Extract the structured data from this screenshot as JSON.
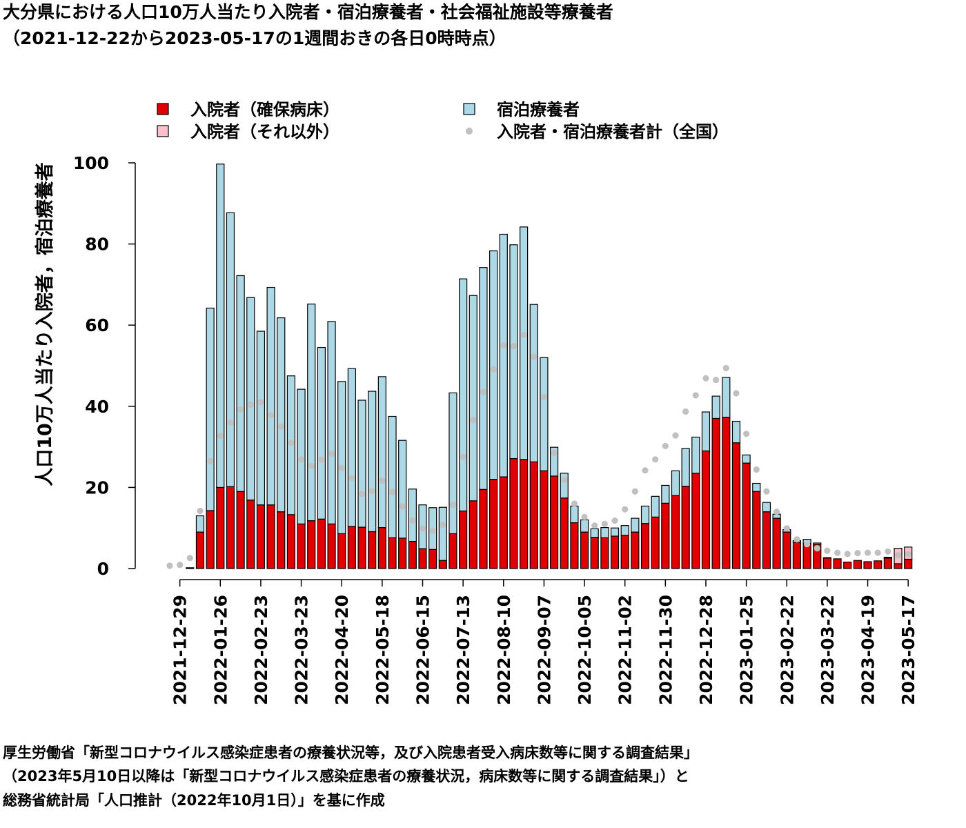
{
  "title": {
    "line1": "大分県における人口10万人当たり入院者・宿泊療養者・社会福祉施設等療養者",
    "line2": "（2021-12-22から2023-05-17の1週間おきの各日0時時点）"
  },
  "source": {
    "line1": "厚生労働省「新型コロナウイルス感染症患者の療養状況等，及び入院患者受入病床数等に関する調査結果」",
    "line2": "（2023年5月10日以降は「新型コロナウイルス感染症患者の療養状況，病床数等に関する調査結果」）と",
    "line3": "総務省統計局「人口推計（2022年10月1日）」を基に作成"
  },
  "chart_data": {
    "type": "bar",
    "stacked": true,
    "ylabel": "人口10万人当たり入院者，宿泊療養者",
    "ylim": [
      0,
      100
    ],
    "yticks": [
      0,
      20,
      40,
      60,
      80,
      100
    ],
    "legend_placement": "top",
    "colors": {
      "hospital_secured": "#e00000",
      "hospital_other": "#ffc0cb",
      "hotel": "#add8e6",
      "national": "#c0c0c0"
    },
    "xtick_labels": [
      "2021-12-29",
      "2022-01-26",
      "2022-02-23",
      "2022-03-23",
      "2022-04-20",
      "2022-05-18",
      "2022-06-15",
      "2022-07-13",
      "2022-08-10",
      "2022-09-07",
      "2022-10-05",
      "2022-11-02",
      "2022-11-30",
      "2022-12-28",
      "2023-01-25",
      "2023-02-22",
      "2023-03-22",
      "2023-04-19",
      "2023-05-17"
    ],
    "xtick_indices": [
      1,
      5,
      9,
      13,
      17,
      21,
      25,
      29,
      33,
      37,
      41,
      45,
      49,
      53,
      57,
      61,
      65,
      69,
      73
    ],
    "series": [
      {
        "name": "入院者（確保病床）",
        "key": "hospital_secured",
        "values": [
          0,
          0,
          0.2,
          9,
          14.3,
          20,
          20.2,
          19,
          16.9,
          15.7,
          15.7,
          14,
          13.3,
          11,
          11.8,
          12.2,
          11,
          8.6,
          10.4,
          10.2,
          9.1,
          10.1,
          7.6,
          7.5,
          6.7,
          4.9,
          4.7,
          2,
          8.6,
          14.2,
          16.7,
          19.5,
          22,
          22.6,
          27.1,
          26.9,
          26.3,
          24.1,
          22.8,
          17.4,
          11.3,
          9,
          7.7,
          7.6,
          8,
          8.2,
          9,
          11.1,
          12.7,
          16.1,
          18,
          20.3,
          23.5,
          29,
          37,
          37.3,
          31,
          26,
          19,
          14,
          12.4,
          9,
          6.5,
          6.2,
          6,
          2.6,
          2.4,
          1.6,
          2,
          1.7,
          1.9,
          2.6,
          1.2,
          2.3
        ]
      },
      {
        "name": "入院者（それ以外）",
        "key": "hospital_other",
        "values": [
          0,
          0,
          0,
          0,
          0,
          0,
          0,
          0,
          0,
          0,
          0,
          0,
          0,
          0,
          0,
          0,
          0,
          0,
          0,
          0,
          0,
          0,
          0,
          0,
          0,
          0,
          0,
          0,
          0,
          0,
          0,
          0,
          0,
          0,
          0,
          0,
          0,
          0,
          0,
          0,
          0,
          0,
          0,
          0,
          0,
          0,
          0,
          0,
          0,
          0,
          0,
          0,
          0,
          0,
          0,
          0,
          0,
          0,
          0,
          0,
          0,
          0,
          0,
          0,
          0,
          0,
          0,
          0,
          0,
          0,
          0,
          0.2,
          3.8,
          3
        ]
      },
      {
        "name": "宿泊療養者",
        "key": "hotel",
        "values": [
          0,
          0,
          0,
          4,
          49.9,
          79.7,
          67.5,
          53.2,
          49.9,
          42.8,
          53.6,
          47.8,
          34.2,
          33.2,
          53.4,
          42.3,
          49.9,
          37.5,
          38.9,
          31.3,
          34.6,
          37.2,
          29.9,
          24.1,
          12.9,
          10.8,
          10.3,
          13.1,
          34.7,
          57.2,
          50.6,
          54.7,
          56.3,
          59.8,
          52.7,
          57.3,
          38.8,
          27.9,
          7.1,
          6.1,
          4.1,
          3,
          2.1,
          2.5,
          2,
          2.4,
          3.4,
          4.3,
          5.1,
          4.4,
          6.1,
          9.3,
          8.9,
          9.6,
          5.5,
          9.8,
          5.3,
          2,
          2,
          2.3,
          1,
          0.6,
          0.4,
          1,
          0.3,
          0.1,
          0,
          0,
          0,
          0,
          0,
          0,
          0,
          0
        ]
      },
      {
        "name": "入院者・宿泊療養者計（全国）",
        "key": "national",
        "type": "scatter",
        "values": [
          0.7,
          0.9,
          2.6,
          14.2,
          26.5,
          32.7,
          36,
          39.2,
          40.4,
          41,
          37.8,
          35,
          31,
          26.9,
          25.3,
          26.8,
          28.3,
          24.8,
          22.3,
          18.4,
          19.1,
          21.7,
          18.9,
          15.3,
          11.9,
          9.9,
          9.3,
          10.8,
          15.7,
          27.5,
          36.6,
          43.5,
          49.1,
          55,
          54.8,
          57.6,
          52.2,
          42.3,
          28.5,
          21.9,
          16,
          12.7,
          10.6,
          11,
          11.8,
          14.6,
          19,
          24.2,
          26.9,
          30.2,
          32.8,
          38.7,
          42.7,
          46.9,
          46.5,
          49.4,
          43.2,
          33.2,
          24.4,
          19,
          14,
          9.9,
          7.2,
          6,
          5,
          4.4,
          3.9,
          3.6,
          3.8,
          3.9,
          3.9,
          4.2,
          3.3,
          3.6
        ]
      }
    ]
  }
}
